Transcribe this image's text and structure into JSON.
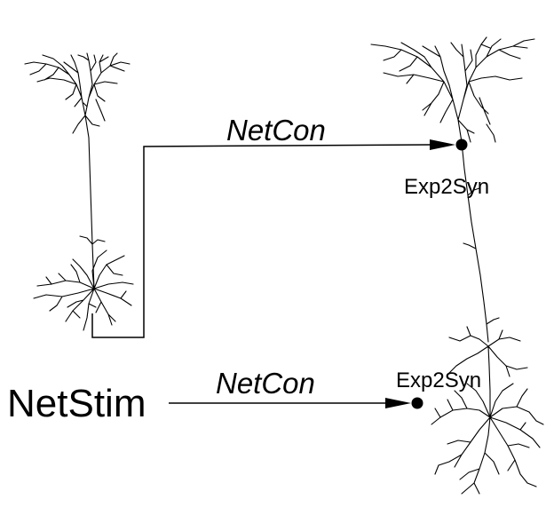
{
  "labels": {
    "netcon_top": "NetCon",
    "netcon_bottom": "NetCon",
    "synapse_top": "Exp2Syn",
    "synapse_bottom": "Exp2Syn",
    "stimulus": "NetStim"
  },
  "colors": {
    "stroke": "#000000",
    "background": "#ffffff"
  }
}
